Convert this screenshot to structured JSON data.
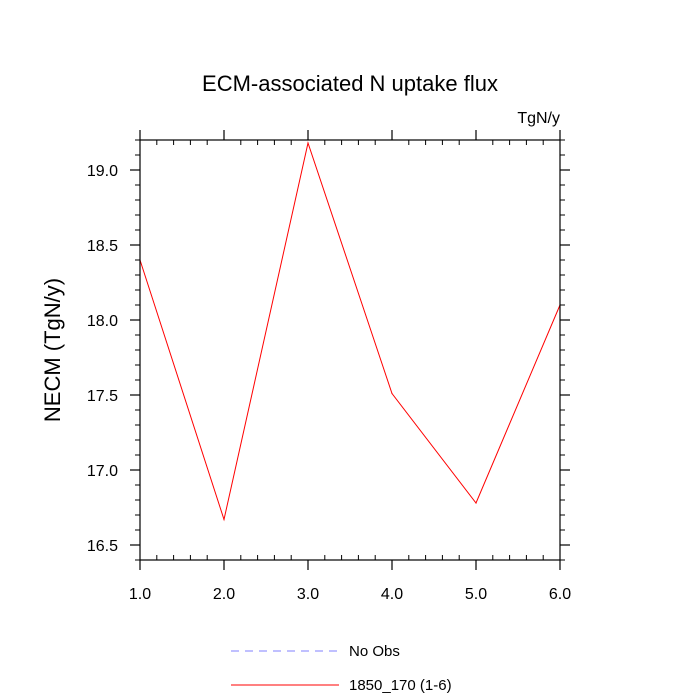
{
  "chart_data": {
    "type": "line",
    "title": "ECM-associated N uptake flux",
    "units": "TgN/y",
    "ylabel": "NECM  (TgN/y)",
    "xlabel": "",
    "xlim": [
      1,
      6
    ],
    "ylim": [
      16.4,
      19.2
    ],
    "xticks": [
      1,
      2,
      3,
      4,
      5,
      6
    ],
    "xtick_labels": [
      "1.0",
      "2.0",
      "3.0",
      "4.0",
      "5.0",
      "6.0"
    ],
    "yticks": [
      16.5,
      17.0,
      17.5,
      18.0,
      18.5,
      19.0
    ],
    "ytick_labels": [
      "16.5",
      "17.0",
      "17.5",
      "18.0",
      "18.5",
      "19.0"
    ],
    "grid": false,
    "legend_position": "bottom",
    "series": [
      {
        "name": "1850_170 (1-6)",
        "x": [
          1,
          2,
          3,
          4,
          5,
          6
        ],
        "values": [
          18.4,
          16.67,
          19.18,
          17.51,
          16.78,
          18.1
        ],
        "color": "#ff0000",
        "style": "solid"
      }
    ],
    "legend": [
      {
        "label": "No Obs",
        "color": "#8080ff",
        "style": "dashed"
      },
      {
        "label": "1850_170 (1-6)",
        "color": "#ff0000",
        "style": "solid"
      }
    ]
  }
}
